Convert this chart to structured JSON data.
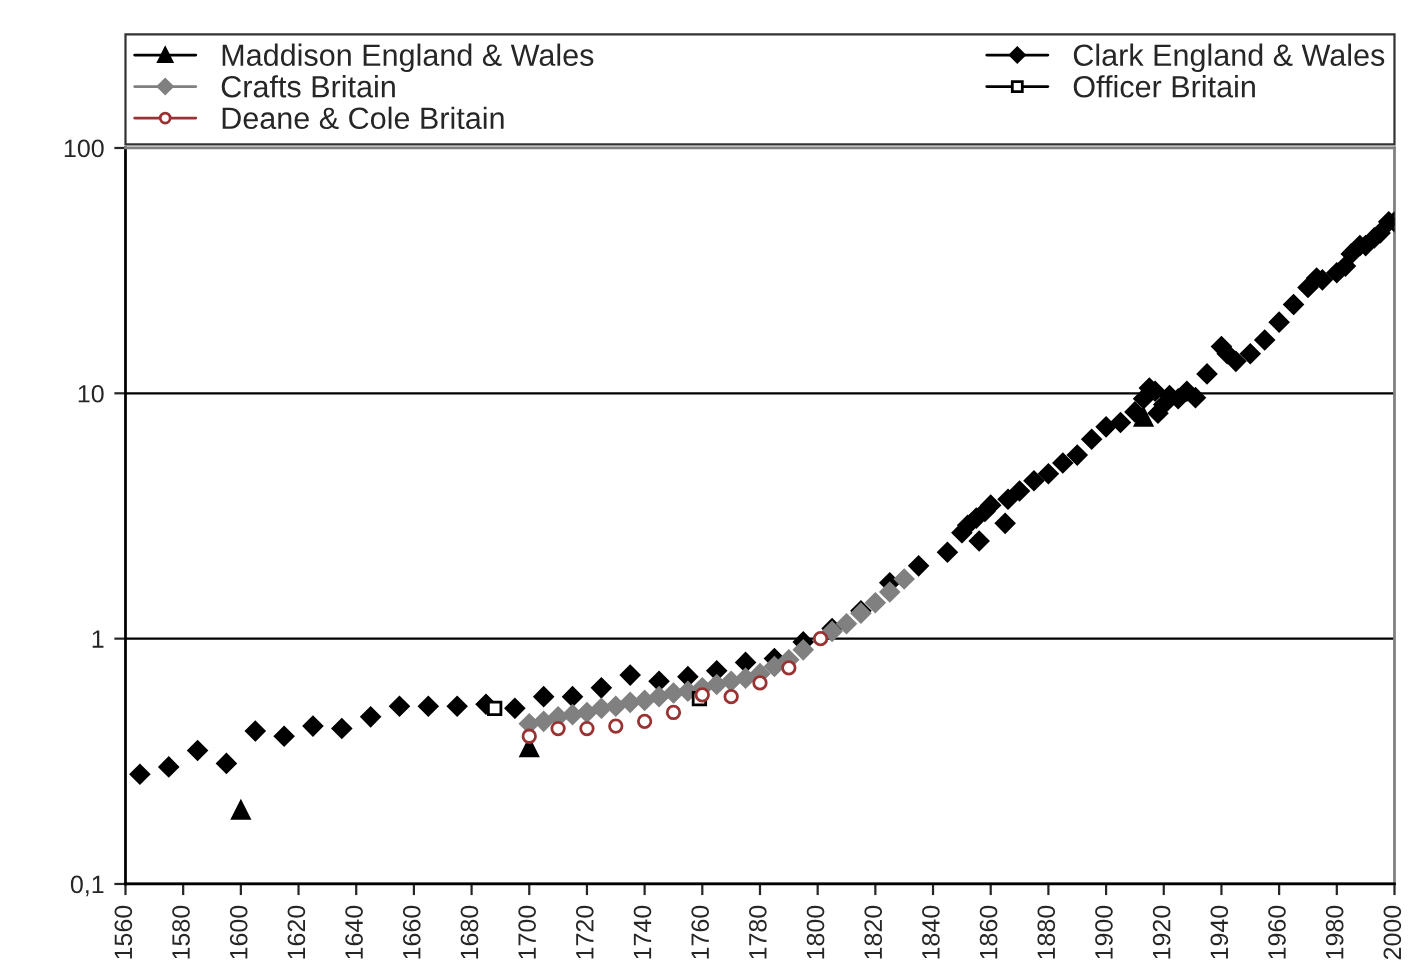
{
  "chart_data": {
    "type": "scatter",
    "log": "y",
    "xlim": [
      1560,
      2000
    ],
    "ylim": [
      0.1,
      100
    ],
    "xticks": [
      1560,
      1580,
      1600,
      1620,
      1640,
      1660,
      1680,
      1700,
      1720,
      1740,
      1760,
      1780,
      1800,
      1820,
      1840,
      1860,
      1880,
      1900,
      1920,
      1940,
      1960,
      1980,
      2000
    ],
    "yticks": [
      {
        "value": 0.1,
        "label": "0,1"
      },
      1,
      10,
      100
    ],
    "grid": "y",
    "legend": "top",
    "series": [
      {
        "name": "Maddison England & Wales",
        "color": "#000000",
        "marker": "triangle",
        "x": [
          1600,
          1700,
          1913
        ],
        "values": [
          0.2,
          0.36,
          8.0
        ]
      },
      {
        "name": "Clark England & Wales",
        "color": "#000000",
        "marker": "diamond",
        "x": [
          1565,
          1575,
          1585,
          1595,
          1605,
          1615,
          1625,
          1635,
          1645,
          1655,
          1665,
          1675,
          1685,
          1695,
          1705,
          1715,
          1725,
          1735,
          1745,
          1755,
          1765,
          1775,
          1785,
          1795,
          1805,
          1815,
          1825,
          1835,
          1845,
          1850,
          1852,
          1855,
          1856,
          1858,
          1860,
          1865,
          1866,
          1870,
          1875,
          1880,
          1885,
          1890,
          1895,
          1900,
          1905,
          1910,
          1913,
          1915,
          1917,
          1918,
          1920,
          1922,
          1925,
          1928,
          1931,
          1935,
          1940,
          1942,
          1945,
          1950,
          1955,
          1960,
          1965,
          1970,
          1973,
          1975,
          1980,
          1983,
          1985,
          1988,
          1990,
          1993,
          1995,
          1998,
          2000
        ],
        "values": [
          0.28,
          0.3,
          0.35,
          0.31,
          0.42,
          0.4,
          0.44,
          0.43,
          0.48,
          0.53,
          0.53,
          0.53,
          0.54,
          0.52,
          0.58,
          0.58,
          0.63,
          0.71,
          0.67,
          0.7,
          0.74,
          0.8,
          0.83,
          0.97,
          1.1,
          1.3,
          1.69,
          1.98,
          2.25,
          2.7,
          2.9,
          3.1,
          2.5,
          3.3,
          3.5,
          2.95,
          3.7,
          4.0,
          4.4,
          4.7,
          5.2,
          5.6,
          6.5,
          7.3,
          7.6,
          8.4,
          9.5,
          10.5,
          10.2,
          8.3,
          9.0,
          9.8,
          9.5,
          10.2,
          9.6,
          12,
          15.5,
          14.5,
          13.5,
          14.5,
          16.5,
          19.5,
          23,
          27,
          29.5,
          29,
          31,
          33,
          37,
          40,
          40,
          43,
          45,
          50,
          50
        ]
      },
      {
        "name": "Crafts Britain",
        "color": "#808080",
        "marker": "diamond",
        "x": [
          1700,
          1705,
          1710,
          1715,
          1720,
          1725,
          1730,
          1735,
          1740,
          1745,
          1750,
          1755,
          1760,
          1765,
          1770,
          1775,
          1780,
          1785,
          1790,
          1795,
          1805,
          1810,
          1815,
          1820,
          1825,
          1830
        ],
        "values": [
          0.45,
          0.46,
          0.48,
          0.49,
          0.5,
          0.52,
          0.53,
          0.55,
          0.56,
          0.58,
          0.6,
          0.61,
          0.63,
          0.65,
          0.67,
          0.69,
          0.72,
          0.77,
          0.82,
          0.9,
          1.07,
          1.15,
          1.27,
          1.4,
          1.55,
          1.75
        ]
      },
      {
        "name": "Officer Britain",
        "color": "#000000",
        "marker": "square",
        "x": [
          1688,
          1759
        ],
        "values": [
          0.52,
          0.57
        ]
      },
      {
        "name": "Deane & Cole Britain",
        "color": "#993333",
        "marker": "circle",
        "x": [
          1700,
          1710,
          1720,
          1730,
          1740,
          1750,
          1760,
          1770,
          1780,
          1790,
          1801
        ],
        "values": [
          0.4,
          0.43,
          0.43,
          0.44,
          0.46,
          0.5,
          0.59,
          0.58,
          0.66,
          0.76,
          1.0
        ]
      }
    ]
  }
}
